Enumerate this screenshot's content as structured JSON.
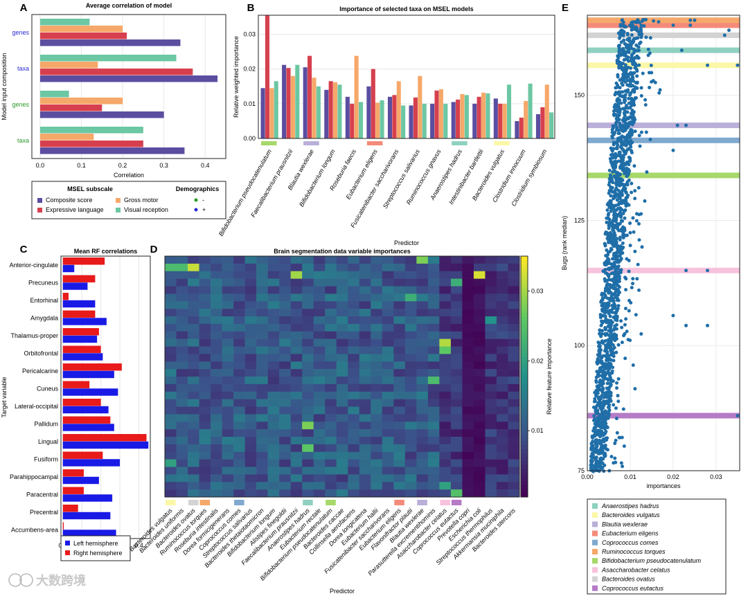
{
  "colors": {
    "composite": "#5b4ea0",
    "expressive": "#d6404e",
    "gross": "#f6a86a",
    "visual": "#6cc7a3",
    "left": "#1a1ae6",
    "right": "#e81a1a",
    "dots": "#1f6ea8",
    "genes_blue": "#2b2bd1",
    "genes_green": "#2a9a2a"
  },
  "watermark": "大数跨境",
  "chart_data": [
    {
      "panel": "A",
      "type": "bar",
      "orientation": "horizontal",
      "title": "Average correlation of model",
      "xlabel": "Correlation",
      "ylabel": "Model input composition",
      "xlim": [
        -0.02,
        0.45
      ],
      "xticks": [
        "0.0",
        "0.1",
        "0.2",
        "0.3",
        "0.4"
      ],
      "categories": [
        "genes",
        "taxa",
        "genes",
        "taxa"
      ],
      "category_colors": [
        "genes_blue",
        "genes_blue",
        "genes_green",
        "genes_green"
      ],
      "series": [
        {
          "name": "Visual reception",
          "color_key": "visual",
          "values": [
            0.12,
            0.33,
            0.07,
            0.25
          ]
        },
        {
          "name": "Gross motor",
          "color_key": "gross",
          "values": [
            0.2,
            0.14,
            0.2,
            0.13
          ]
        },
        {
          "name": "Expressive language",
          "color_key": "expressive",
          "values": [
            0.21,
            0.37,
            0.15,
            0.25
          ]
        },
        {
          "name": "Composite score",
          "color_key": "composite",
          "values": [
            0.34,
            0.43,
            0.3,
            0.35
          ]
        }
      ],
      "legend": {
        "title_left": "MSEL subscale",
        "title_right": "Demographics",
        "items": [
          {
            "label": "Composite score",
            "color_key": "composite"
          },
          {
            "label": "Gross motor",
            "color_key": "gross"
          },
          {
            "label": "Expressive language",
            "color_key": "expressive"
          },
          {
            "label": "Visual reception",
            "color_key": "visual"
          }
        ],
        "demographics": [
          {
            "label": "-",
            "color_key": "genes_green"
          },
          {
            "label": "+",
            "color_key": "genes_blue"
          }
        ]
      }
    },
    {
      "panel": "B",
      "type": "bar",
      "title": "Importance of selected taxa on MSEL models",
      "xlabel": "Predictor",
      "ylabel": "Relative weighted importance",
      "ylim": [
        0,
        0.0355
      ],
      "yticks": [
        "0.00",
        "0.01",
        "0.02",
        "0.03"
      ],
      "categories": [
        "Bifidobacterium pseudocatenulatum",
        "Faecalibacterium prausnitzii",
        "Blautia wexlerae",
        "Bifidobacterium longum",
        "Roseburia faecis",
        "Eubacterium eligens",
        "Fusicatenibacter saccharivorans",
        "Streptococcus salivarius",
        "Ruminococcus gnavus",
        "Anaerostipes hadrus",
        "Intestinibacter bartlettii",
        "Bacteroides vulgatus",
        "Clostridium innocuum",
        "Clostridium symbiosum"
      ],
      "series": [
        {
          "name": "Composite score",
          "color_key": "composite",
          "values": [
            0.0145,
            0.0212,
            0.0205,
            0.014,
            0.012,
            0.015,
            0.012,
            0.0095,
            0.01,
            0.0105,
            0.01,
            0.0115,
            0.005,
            0.007
          ]
        },
        {
          "name": "Expressive language",
          "color_key": "expressive",
          "values": [
            0.0355,
            0.0203,
            0.0238,
            0.0165,
            0.01,
            0.02,
            0.0125,
            0.0118,
            0.0138,
            0.0112,
            0.012,
            0.01,
            0.006,
            0.009
          ]
        },
        {
          "name": "Gross motor",
          "color_key": "gross",
          "values": [
            0.0145,
            0.018,
            0.0175,
            0.0162,
            0.0238,
            0.0103,
            0.0165,
            0.018,
            0.0142,
            0.0128,
            0.0132,
            0.01,
            0.0108,
            0.0155
          ]
        },
        {
          "name": "Visual reception",
          "color_key": "visual",
          "values": [
            0.0165,
            0.0212,
            0.015,
            0.0155,
            0.0105,
            0.011,
            0.0095,
            0.01,
            0.01,
            0.0125,
            0.013,
            0.0155,
            0.0158,
            0.0075
          ]
        }
      ],
      "category_markers": [
        {
          "index": 0,
          "color": "#a6d86a"
        },
        {
          "index": 2,
          "color": "#b9afd9"
        },
        {
          "index": 5,
          "color": "#f48b7a"
        },
        {
          "index": 9,
          "color": "#8fd1c0"
        },
        {
          "index": 11,
          "color": "#fbf7a6"
        }
      ]
    },
    {
      "panel": "C",
      "type": "bar",
      "orientation": "horizontal",
      "title": "Mean RF correlations",
      "xlabel": "Correlation",
      "ylabel": "Target variable",
      "xlim": [
        -0.01,
        0.46
      ],
      "xticks": [
        "0.0",
        "0.1",
        "0.2",
        "0.3",
        "0.4"
      ],
      "categories": [
        "Anterior-cingulate",
        "Precuneus",
        "Entorhinal",
        "Amygdala",
        "Thalamus-proper",
        "Orbitofrontal",
        "Pericalcarine",
        "Cuneus",
        "Lateral-occipital",
        "Pallidum",
        "Lingual",
        "Fusiform",
        "Parahippocampal",
        "Paracentral",
        "Precentral",
        "Accumbens-area"
      ],
      "series": [
        {
          "name": "Right hemisphere",
          "color_key": "right",
          "values": [
            0.22,
            0.17,
            0.03,
            0.17,
            0.19,
            0.2,
            0.31,
            0.14,
            0.2,
            0.25,
            0.44,
            0.21,
            0.11,
            0.11,
            0.08,
            0.005
          ]
        },
        {
          "name": "Left hemisphere",
          "color_key": "left",
          "values": [
            0.06,
            0.13,
            0.17,
            0.23,
            0.18,
            0.21,
            0.27,
            0.29,
            0.24,
            0.27,
            0.45,
            0.3,
            0.19,
            0.26,
            0.25,
            0.28
          ]
        }
      ],
      "legend": [
        {
          "label": "Left hemisphere",
          "color_key": "left"
        },
        {
          "label": "Right hemisphere",
          "color_key": "right"
        }
      ]
    },
    {
      "panel": "D",
      "type": "heatmap",
      "title": "Brain segmentation data variable importances",
      "xlabel": "Predictor",
      "colorbar_label": "Relative feature importance",
      "colorbar_range": [
        0.0005,
        0.035
      ],
      "colorbar_ticks": [
        {
          "value": 0.01,
          "label": "0.01"
        },
        {
          "value": 0.02,
          "label": "0.02"
        },
        {
          "value": 0.03,
          "label": "0.03"
        }
      ],
      "rows": 32,
      "columns": [
        "Bacteroides vulgatus",
        "Bacteroides uniformis",
        "Bacteroides ovatus",
        "Ruminococcus torques",
        "Roseburia intestinalis",
        "Dorea formicigenerans",
        "Coprococcus comes",
        "Streptococcus salivarius",
        "Bacteroides thetaiotaomicron",
        "Bifidobacterium longum",
        "Alistipes finegoldii",
        "Faecalibacterium prausnitzii",
        "Anaerostipes hadrus",
        "Eubacterium rectale",
        "Bifidobacterium pseudocatenulatum",
        "Bacteroides caccae",
        "Collinsella aerofaciens",
        "Dorea longicatena",
        "Eubacterium hallii",
        "Fusicatenibacter saccharivorans",
        "Eubacterium eligens",
        "Flavonifractor plautii",
        "Blautia wexlerae",
        "Parasutterella excrementihominis",
        "Asaccharobacter celatus",
        "Coprococcus eutactus",
        "Prevotella copri",
        "Escherichia coli",
        "Streptococcus thermophilus",
        "Akkermansia muciniphila",
        "Bacteroides stercoris"
      ],
      "column_markers": [
        {
          "index": 0,
          "color": "#fbf7a6"
        },
        {
          "index": 2,
          "color": "#d3d3d3"
        },
        {
          "index": 3,
          "color": "#f6a86a"
        },
        {
          "index": 6,
          "color": "#7fa9cf"
        },
        {
          "index": 12,
          "color": "#8fd1c0"
        },
        {
          "index": 14,
          "color": "#a6d86a"
        },
        {
          "index": 20,
          "color": "#f48b7a"
        },
        {
          "index": 22,
          "color": "#b9afd9"
        },
        {
          "index": 24,
          "color": "#f8c2dd"
        },
        {
          "index": 25,
          "color": "#b57bc6"
        }
      ],
      "highlights": [
        {
          "row": 2,
          "col": 11,
          "value": 0.03
        },
        {
          "row": 0,
          "col": 22,
          "value": 0.028
        },
        {
          "row": 3,
          "col": 25,
          "value": 0.022
        },
        {
          "row": 8,
          "col": 28,
          "value": 0.018
        },
        {
          "row": 25,
          "col": 12,
          "value": 0.026
        },
        {
          "row": 22,
          "col": 12,
          "value": 0.028
        },
        {
          "row": 11,
          "col": 24,
          "value": 0.031
        },
        {
          "row": 12,
          "col": 24,
          "value": 0.026
        },
        {
          "row": 16,
          "col": 23,
          "value": 0.024
        },
        {
          "row": 5,
          "col": 21,
          "value": 0.022
        },
        {
          "row": 1,
          "col": 1,
          "value": 0.024
        },
        {
          "row": 1,
          "col": 2,
          "value": 0.032
        },
        {
          "row": 1,
          "col": 0,
          "value": 0.024
        },
        {
          "row": 27,
          "col": 0,
          "value": 0.02
        },
        {
          "row": 2,
          "col": 27,
          "value": 0.033
        },
        {
          "row": 31,
          "col": 25,
          "value": 0.025
        },
        {
          "row": 30,
          "col": 24,
          "value": 0.02
        }
      ]
    },
    {
      "panel": "E",
      "type": "scatter",
      "xlabel": "importances",
      "ylabel": "Bugs (rank median)",
      "xlim": [
        0.0,
        0.0355
      ],
      "ylim": [
        75,
        166
      ],
      "xticks": [
        "0.00",
        "0.01",
        "0.02",
        "0.03"
      ],
      "yticks": [
        "75",
        "100",
        "125",
        "150"
      ],
      "highlight_bands": [
        {
          "name": "Anaerostipes hadrus",
          "rank": 159,
          "color": "#8fd1c0"
        },
        {
          "name": "Bacteroides vulgatus",
          "rank": 156,
          "color": "#fbf7a6"
        },
        {
          "name": "Blautia wexlerae",
          "rank": 144,
          "color": "#b9afd9"
        },
        {
          "name": "Eubacterium eligens",
          "rank": 164,
          "color": "#f48b7a"
        },
        {
          "name": "Coprococcus comes",
          "rank": 141,
          "color": "#7fa9cf"
        },
        {
          "name": "Ruminococcus torques",
          "rank": 165,
          "color": "#f6a86a"
        },
        {
          "name": "Bifidobacterium pseudocatenulatum",
          "rank": 134,
          "color": "#a6d86a"
        },
        {
          "name": "Asaccharobacter celatus",
          "rank": 115,
          "color": "#f8c2dd"
        },
        {
          "name": "Bacteroides ovatus",
          "rank": 162,
          "color": "#d3d3d3"
        },
        {
          "name": "Coprococcus eutactus",
          "rank": 86,
          "color": "#b57bc6"
        }
      ],
      "outliers": [
        {
          "rank": 165,
          "x": 0.024
        },
        {
          "rank": 165,
          "x": 0.025
        },
        {
          "rank": 164,
          "x": 0.02
        },
        {
          "rank": 164,
          "x": 0.024
        },
        {
          "rank": 163,
          "x": 0.033
        },
        {
          "rank": 162,
          "x": 0.032
        },
        {
          "rank": 159,
          "x": 0.022
        },
        {
          "rank": 156,
          "x": 0.028
        },
        {
          "rank": 156,
          "x": 0.035
        },
        {
          "rank": 144,
          "x": 0.021
        },
        {
          "rank": 144,
          "x": 0.023
        },
        {
          "rank": 115,
          "x": 0.028
        },
        {
          "rank": 104,
          "x": 0.028
        },
        {
          "rank": 86,
          "x": 0.035
        },
        {
          "rank": 104,
          "x": 0.023
        },
        {
          "rank": 115,
          "x": 0.023
        },
        {
          "rank": 106,
          "x": 0.02
        },
        {
          "rank": 139,
          "x": 0.02
        }
      ],
      "legend": [
        "Anaerostipes hadrus",
        "Bacteroides vulgatus",
        "Blautia wexlerae",
        "Eubacterium eligens",
        "Coprococcus comes",
        "Ruminococcus torques",
        "Bifidobacterium pseudocatenulatum",
        "Asaccharobacter celatus",
        "Bacteroides ovatus",
        "Coprococcus eutactus"
      ],
      "legend_colors": [
        "#8fd1c0",
        "#fbf7a6",
        "#b9afd9",
        "#f48b7a",
        "#7fa9cf",
        "#f6a86a",
        "#a6d86a",
        "#f8c2dd",
        "#d3d3d3",
        "#b57bc6"
      ]
    }
  ],
  "panel_labels": [
    "A",
    "B",
    "C",
    "D",
    "E"
  ]
}
